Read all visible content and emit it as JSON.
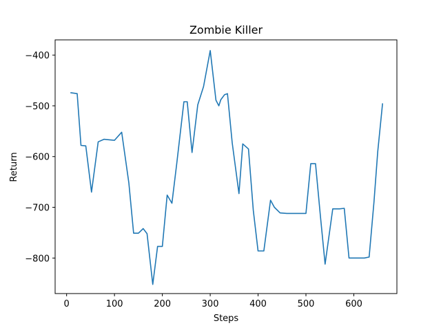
{
  "chart_data": {
    "type": "line",
    "title": "Zombie Killer",
    "xlabel": "Steps",
    "ylabel": "Return",
    "xlim": [
      -24,
      690
    ],
    "ylim": [
      -870,
      -370
    ],
    "xticks": [
      0,
      100,
      200,
      300,
      400,
      500,
      600
    ],
    "yticks": [
      -400,
      -500,
      -600,
      -700,
      -800
    ],
    "xtick_labels": [
      "0",
      "100",
      "200",
      "300",
      "400",
      "500",
      "600"
    ],
    "ytick_labels": [
      "−400",
      "−500",
      "−600",
      "−700",
      "−800"
    ],
    "grid": false,
    "series": [
      {
        "color": "#1f77b4",
        "x": [
          8,
          22,
          30,
          40,
          52,
          66,
          78,
          90,
          100,
          115,
          130,
          140,
          150,
          160,
          168,
          180,
          190,
          200,
          210,
          220,
          230,
          245,
          252,
          262,
          274,
          286,
          300,
          312,
          318,
          322,
          330,
          336,
          346,
          360,
          368,
          380,
          390,
          400,
          412,
          426,
          434,
          446,
          460,
          480,
          500,
          510,
          520,
          530,
          540,
          556,
          570,
          580,
          590,
          600,
          612,
          622,
          632,
          642,
          650,
          660
        ],
        "y": [
          -474,
          -476,
          -578,
          -579,
          -670,
          -571,
          -566,
          -567,
          -568,
          -552,
          -652,
          -751,
          -751,
          -742,
          -752,
          -852,
          -777,
          -777,
          -676,
          -692,
          -615,
          -492,
          -492,
          -592,
          -498,
          -462,
          -391,
          -489,
          -500,
          -488,
          -478,
          -476,
          -573,
          -673,
          -575,
          -585,
          -706,
          -786,
          -786,
          -686,
          -700,
          -711,
          -712,
          -712,
          -712,
          -614,
          -614,
          -716,
          -812,
          -703,
          -703,
          -702,
          -800,
          -800,
          -800,
          -800,
          -798,
          -690,
          -590,
          -495
        ]
      }
    ]
  }
}
